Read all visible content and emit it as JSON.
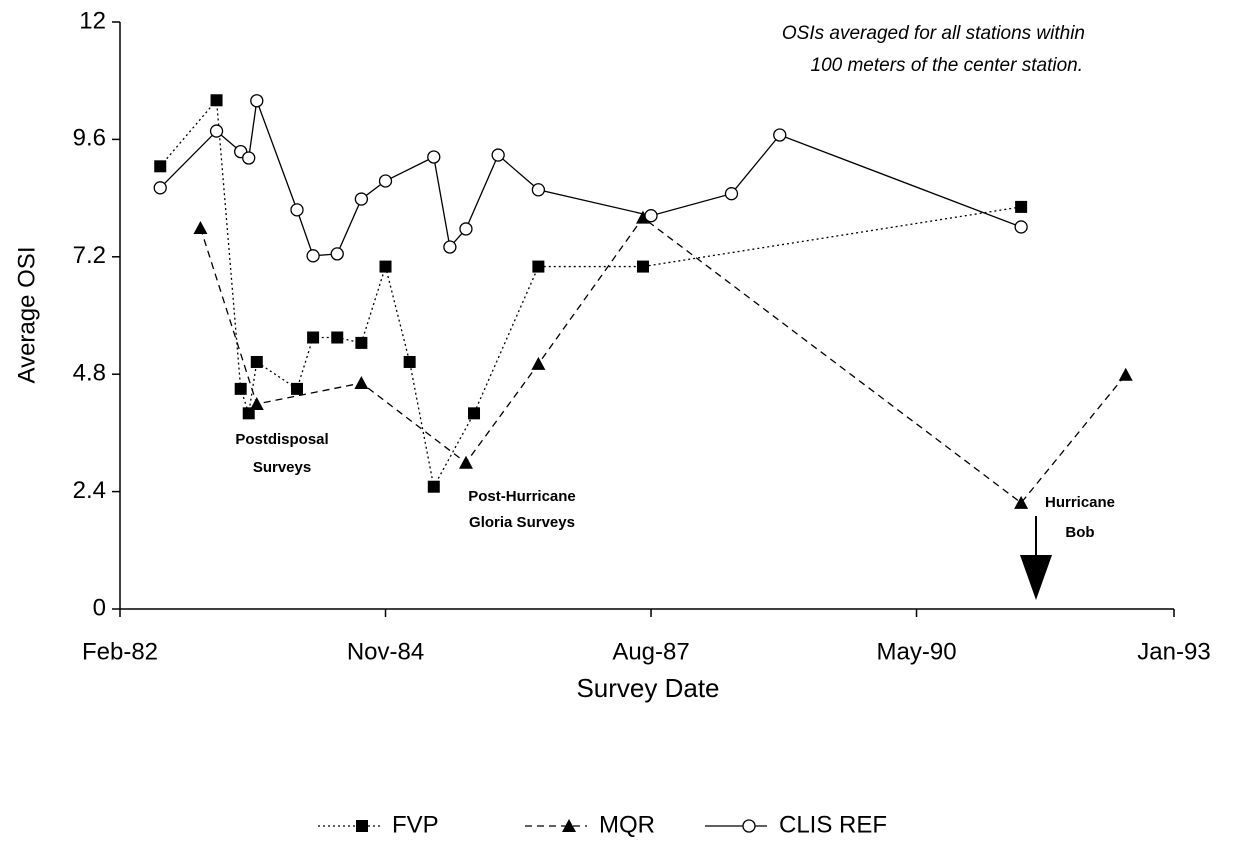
{
  "chart_data": {
    "type": "line",
    "xlabel": "Survey Date",
    "ylabel": "Average OSI",
    "xlim": [
      "1982-02",
      "1993-01"
    ],
    "xticks": [
      {
        "value": "1982-02",
        "label": "Feb-82"
      },
      {
        "value": "1984-11",
        "label": "Nov-84"
      },
      {
        "value": "1987-08",
        "label": "Aug-87"
      },
      {
        "value": "1990-05",
        "label": "May-90"
      },
      {
        "value": "1993-01",
        "label": "Jan-93"
      }
    ],
    "ylim": [
      0,
      12
    ],
    "yticks": [
      0,
      2.4,
      4.8,
      7.2,
      9.6,
      12
    ],
    "annotations": [
      [
        "OSIs averaged for all stations within",
        "100 meters of the center station."
      ],
      [
        "Postdisposal",
        "Surveys"
      ],
      [
        "Post-Hurricane",
        "Gloria Surveys"
      ],
      [
        "Hurricane",
        "Bob"
      ]
    ],
    "series": [
      {
        "name": "FVP",
        "color": "#000000",
        "dash": "dotted",
        "marker": "square",
        "x": [
          "1982-07",
          "1983-02",
          "1983-05",
          "1983-06",
          "1983-07",
          "1983-12",
          "1984-02",
          "1984-05",
          "1984-08",
          "1984-11",
          "1985-02",
          "1985-05",
          "1985-10",
          "1986-06",
          "1987-07",
          "1991-06"
        ],
        "values": [
          9.05,
          10.4,
          4.5,
          4.0,
          5.05,
          4.5,
          5.55,
          5.55,
          5.44,
          7.0,
          5.05,
          2.5,
          4.0,
          7.0,
          7.0,
          8.22
        ]
      },
      {
        "name": "MQR",
        "color": "#000000",
        "dash": "dashed",
        "marker": "triangle",
        "x": [
          "1982-12",
          "1983-07",
          "1984-08",
          "1985-09",
          "1986-06",
          "1987-07",
          "1991-06",
          "1992-07"
        ],
        "values": [
          7.79,
          4.19,
          4.62,
          2.99,
          5.01,
          8.0,
          2.17,
          4.79
        ]
      },
      {
        "name": "CLIS REF",
        "color": "#000000",
        "dash": "solid",
        "marker": "circle",
        "x": [
          "1982-07",
          "1983-02",
          "1983-05",
          "1983-06",
          "1983-07",
          "1983-12",
          "1984-02",
          "1984-05",
          "1984-08",
          "1984-11",
          "1985-05",
          "1985-07",
          "1985-09",
          "1986-01",
          "1986-06",
          "1987-08",
          "1988-06",
          "1988-12",
          "1991-06"
        ],
        "values": [
          8.61,
          9.77,
          9.35,
          9.22,
          10.39,
          8.16,
          7.22,
          7.26,
          8.38,
          8.75,
          9.24,
          7.4,
          7.77,
          9.28,
          8.57,
          8.04,
          8.49,
          9.69,
          7.81
        ]
      }
    ]
  }
}
